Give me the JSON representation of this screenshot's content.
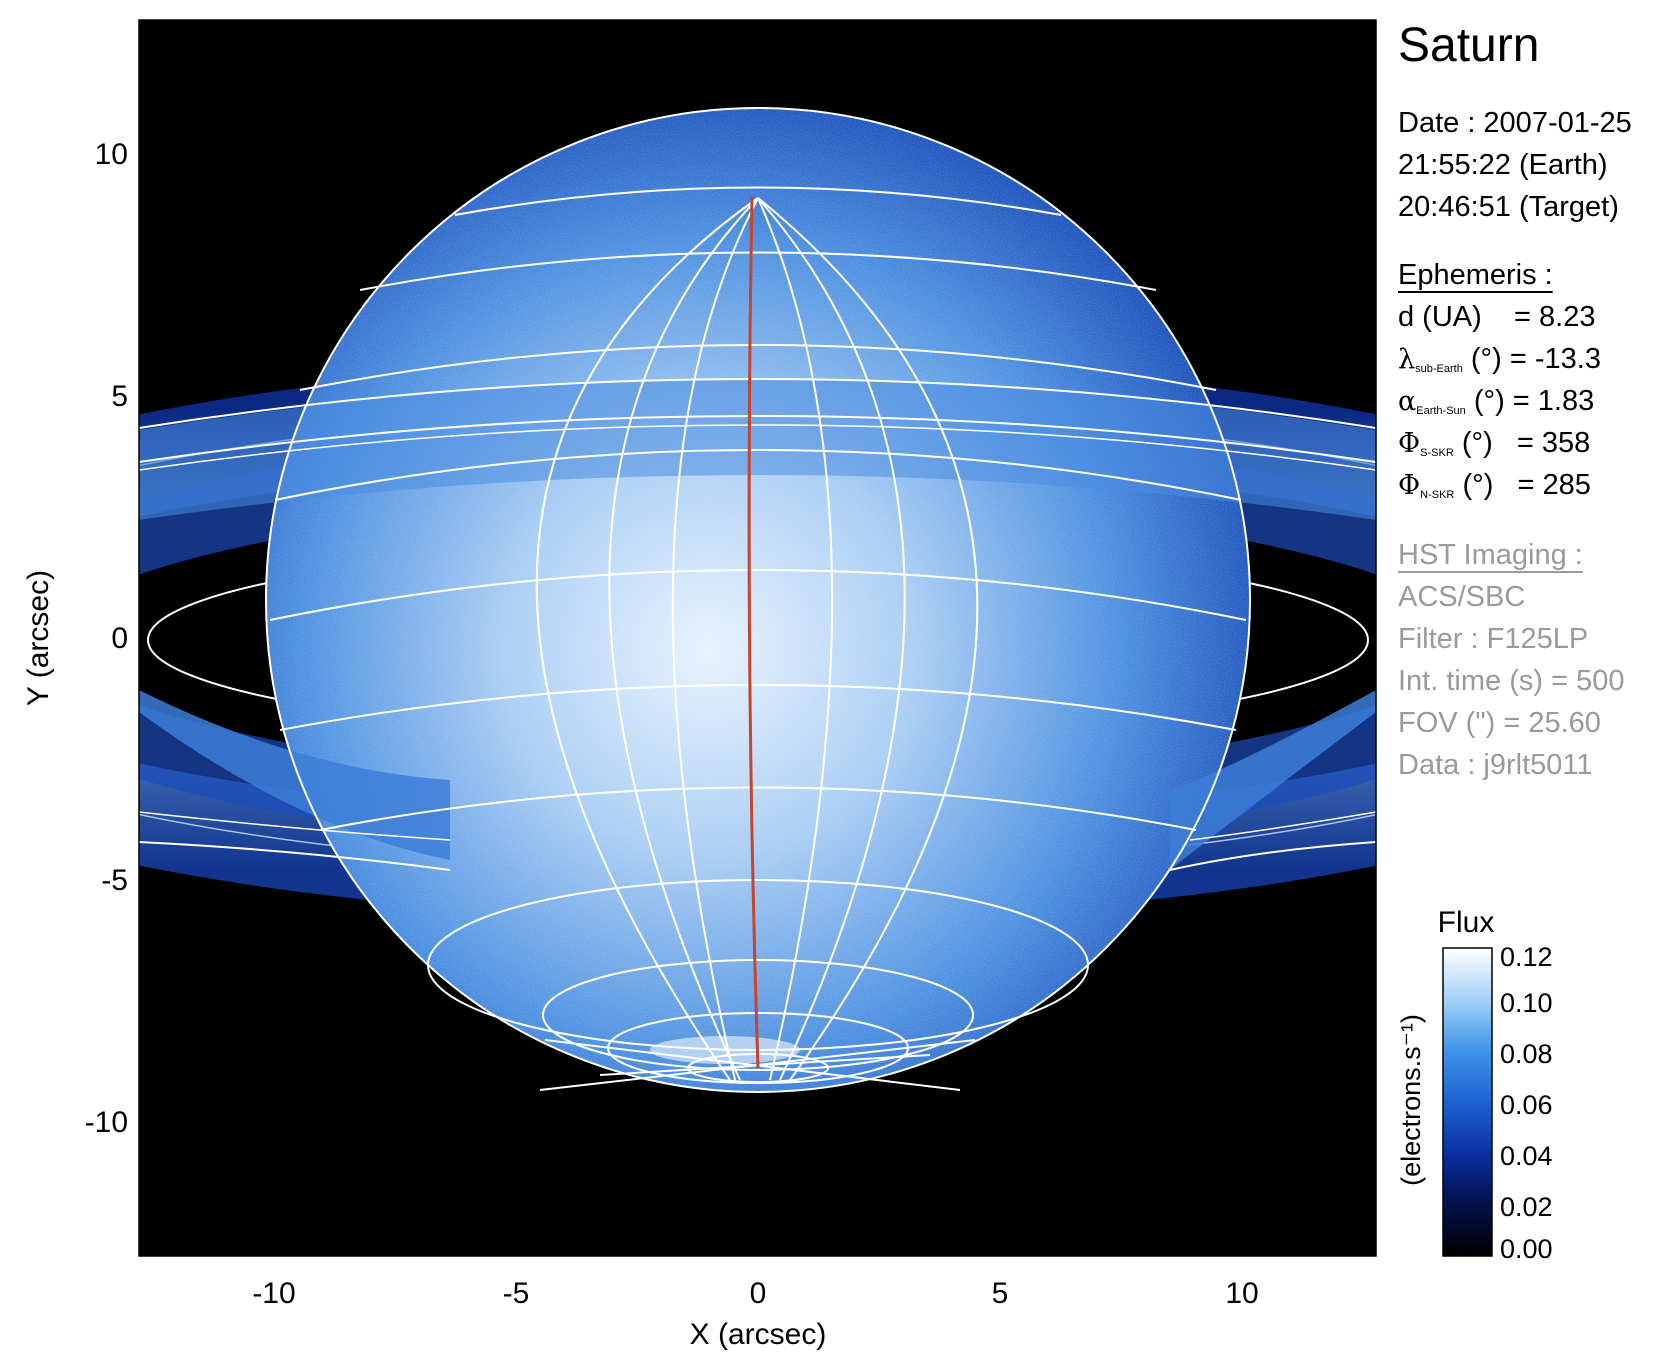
{
  "plot": {
    "x_label": "X (arcsec)",
    "y_label": "Y (arcsec)",
    "x_ticks": [
      "-10",
      "-5",
      "0",
      "5",
      "10"
    ],
    "y_ticks": [
      "10",
      "5",
      "0",
      "-5",
      "-10"
    ],
    "x_range": [
      -12.8,
      12.8
    ],
    "y_range": [
      -12.8,
      12.8
    ]
  },
  "info": {
    "title": "Saturn",
    "date": "Date : 2007-01-25",
    "time_earth": "21:55:22 (Earth)",
    "time_target": "20:46:51 (Target)",
    "ephemeris_heading": "Ephemeris :",
    "eph": {
      "d_label": "d (UA)",
      "d_value": "= 8.23",
      "lambda_sym": "λ",
      "lambda_sub": "sub-Earth",
      "lambda_rest": "(°) = -13.3",
      "alpha_sym": "α",
      "alpha_sub": "Earth-Sun",
      "alpha_rest": "(°) = 1.83",
      "phis_sym": "Φ",
      "phis_sub": "S-SKR",
      "phis_rest": "(°)   = 358",
      "phin_sym": "Φ",
      "phin_sub": "N-SKR",
      "phin_rest": "(°)   = 285"
    },
    "hst_heading": "HST Imaging :",
    "instrument": "ACS/SBC",
    "filter": "Filter : F125LP",
    "int_time": "Int. time (s) = 500",
    "fov": "FOV (\") = 25.60",
    "data_id": "Data : j9rlt5011"
  },
  "colorbar": {
    "title": "Flux",
    "unit_label": "(electrons.s⁻¹)",
    "ticks": [
      "0.12",
      "0.10",
      "0.08",
      "0.06",
      "0.04",
      "0.02",
      "0.00"
    ],
    "range": [
      0.0,
      0.12
    ],
    "colors": [
      "#000000",
      "#03114a",
      "#0a2fa0",
      "#1f63d2",
      "#3f95ea",
      "#a4d0f6",
      "#ffffff"
    ]
  },
  "colors": {
    "sky": "#000000",
    "planet_core": "#e6f1ff",
    "planet_mid": "#3f82dc",
    "planet_limb": "#0e2f9a",
    "grid": "#ffffff",
    "meridian": "#c8432b"
  }
}
